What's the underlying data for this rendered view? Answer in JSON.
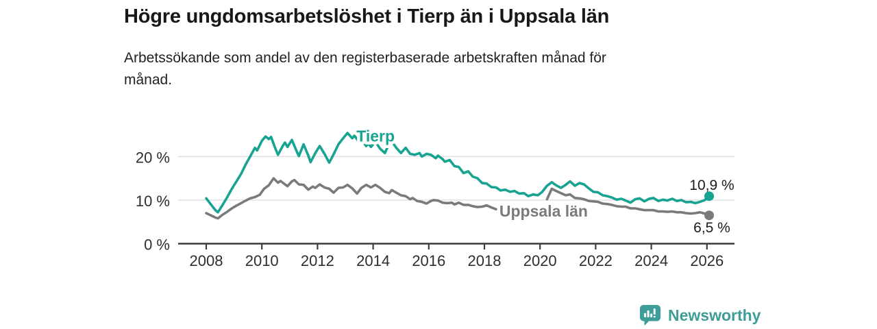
{
  "header": {
    "title": "Högre ungdomsarbetslöshet i Tierp än i Uppsala län",
    "subtitle": "Arbetssökande som andel av den registerbaserade arbetskraften månad för månad.",
    "subtitle_lines": [
      "Arbetssökande som andel av den registerbaserade arbetskraften månad för",
      "månad."
    ]
  },
  "footer": {
    "brand": "Newsworthy",
    "brand_color": "#3E9D98",
    "logo_icon": "bar-chart-speech-bubble-icon"
  },
  "chart_data": {
    "type": "line",
    "title": "Högre ungdomsarbetslöshet i Tierp än i Uppsala län",
    "subtitle": "Arbetssökande som andel av den registerbaserade arbetskraften månad för månad.",
    "xlabel": "",
    "ylabel": "",
    "unit": "%",
    "xlim": [
      2008,
      2026.2
    ],
    "ylim": [
      0,
      28
    ],
    "grid": "horizontal-only",
    "legend": "inline-labels",
    "x_ticks": [
      {
        "v": 2008,
        "label": "2008"
      },
      {
        "v": 2010,
        "label": "2010"
      },
      {
        "v": 2012,
        "label": "2012"
      },
      {
        "v": 2014,
        "label": "2014"
      },
      {
        "v": 2016,
        "label": "2016"
      },
      {
        "v": 2018,
        "label": "2018"
      },
      {
        "v": 2020,
        "label": "2020"
      },
      {
        "v": 2022,
        "label": "2022"
      },
      {
        "v": 2024,
        "label": "2024"
      },
      {
        "v": 2026,
        "label": "2026"
      }
    ],
    "y_ticks": [
      {
        "v": 0,
        "label": "0 %"
      },
      {
        "v": 10,
        "label": "10 %"
      },
      {
        "v": 20,
        "label": "20 %"
      }
    ],
    "colors": {
      "tierp": "#17A392",
      "uppsala": "#7A7A7A",
      "grid": "#DBDBDB",
      "axis": "#3C3C3C",
      "tick_text": "#2E2E2E",
      "value_text": "#1A1A1A"
    },
    "series": [
      {
        "name": "Tierp",
        "color_key": "tierp",
        "end_value": 10.9,
        "end_label": "10,9 %",
        "value_label_placement": "above",
        "label_pos": {
          "x": 2013.4,
          "y": 23.4
        },
        "points": [
          [
            2008.0,
            10.4
          ],
          [
            2008.17,
            9.0
          ],
          [
            2008.33,
            7.7
          ],
          [
            2008.42,
            7.2
          ],
          [
            2008.58,
            8.8
          ],
          [
            2008.75,
            10.6
          ],
          [
            2008.92,
            12.6
          ],
          [
            2009.08,
            14.2
          ],
          [
            2009.25,
            16.0
          ],
          [
            2009.42,
            18.2
          ],
          [
            2009.58,
            20.0
          ],
          [
            2009.75,
            22.0
          ],
          [
            2009.83,
            21.4
          ],
          [
            2010.0,
            23.6
          ],
          [
            2010.13,
            24.6
          ],
          [
            2010.25,
            24.0
          ],
          [
            2010.33,
            24.5
          ],
          [
            2010.5,
            21.6
          ],
          [
            2010.58,
            20.4
          ],
          [
            2010.75,
            22.4
          ],
          [
            2010.83,
            23.2
          ],
          [
            2010.92,
            22.2
          ],
          [
            2011.08,
            23.8
          ],
          [
            2011.25,
            21.2
          ],
          [
            2011.33,
            20.1
          ],
          [
            2011.5,
            22.8
          ],
          [
            2011.67,
            20.2
          ],
          [
            2011.75,
            18.7
          ],
          [
            2011.92,
            20.8
          ],
          [
            2012.08,
            22.4
          ],
          [
            2012.25,
            20.6
          ],
          [
            2012.42,
            18.6
          ],
          [
            2012.58,
            20.5
          ],
          [
            2012.75,
            22.8
          ],
          [
            2012.92,
            24.2
          ],
          [
            2013.08,
            25.4
          ],
          [
            2013.25,
            24.2
          ],
          [
            2013.33,
            24.8
          ],
          [
            2013.5,
            23.2
          ],
          [
            2013.58,
            23.8
          ],
          [
            2013.75,
            22.4
          ],
          [
            2013.83,
            23.0
          ],
          [
            2013.92,
            22.2
          ],
          [
            2014.08,
            23.4
          ],
          [
            2014.25,
            21.8
          ],
          [
            2014.42,
            20.8
          ],
          [
            2014.58,
            23.0
          ],
          [
            2014.67,
            23.5
          ],
          [
            2014.83,
            22.0
          ],
          [
            2015.0,
            20.8
          ],
          [
            2015.17,
            22.0
          ],
          [
            2015.33,
            20.6
          ],
          [
            2015.5,
            20.4
          ],
          [
            2015.67,
            20.8
          ],
          [
            2015.75,
            20.0
          ],
          [
            2015.92,
            20.6
          ],
          [
            2016.08,
            20.4
          ],
          [
            2016.25,
            19.6
          ],
          [
            2016.33,
            20.2
          ],
          [
            2016.5,
            19.4
          ],
          [
            2016.58,
            18.8
          ],
          [
            2016.75,
            19.2
          ],
          [
            2016.92,
            17.8
          ],
          [
            2017.08,
            17.6
          ],
          [
            2017.25,
            16.2
          ],
          [
            2017.42,
            16.6
          ],
          [
            2017.58,
            15.4
          ],
          [
            2017.75,
            15.0
          ],
          [
            2017.92,
            13.9
          ],
          [
            2018.08,
            13.8
          ],
          [
            2018.25,
            13.0
          ],
          [
            2018.42,
            12.9
          ],
          [
            2018.58,
            12.2
          ],
          [
            2018.75,
            12.4
          ],
          [
            2018.92,
            11.9
          ],
          [
            2019.08,
            12.1
          ],
          [
            2019.25,
            11.5
          ],
          [
            2019.42,
            11.6
          ],
          [
            2019.58,
            10.9
          ],
          [
            2019.75,
            11.3
          ],
          [
            2019.92,
            11.1
          ],
          [
            2020.08,
            11.9
          ],
          [
            2020.25,
            13.3
          ],
          [
            2020.42,
            14.1
          ],
          [
            2020.58,
            13.4
          ],
          [
            2020.75,
            12.8
          ],
          [
            2020.92,
            13.5
          ],
          [
            2021.08,
            14.3
          ],
          [
            2021.25,
            13.3
          ],
          [
            2021.42,
            13.9
          ],
          [
            2021.58,
            13.6
          ],
          [
            2021.75,
            12.7
          ],
          [
            2021.92,
            11.9
          ],
          [
            2022.08,
            11.8
          ],
          [
            2022.25,
            11.1
          ],
          [
            2022.42,
            10.9
          ],
          [
            2022.58,
            10.6
          ],
          [
            2022.75,
            10.1
          ],
          [
            2022.92,
            10.3
          ],
          [
            2023.08,
            9.9
          ],
          [
            2023.25,
            9.4
          ],
          [
            2023.42,
            10.2
          ],
          [
            2023.58,
            10.4
          ],
          [
            2023.75,
            9.7
          ],
          [
            2023.92,
            10.3
          ],
          [
            2024.08,
            10.5
          ],
          [
            2024.25,
            9.8
          ],
          [
            2024.42,
            10.1
          ],
          [
            2024.58,
            9.9
          ],
          [
            2024.75,
            10.3
          ],
          [
            2024.92,
            9.8
          ],
          [
            2025.08,
            10.0
          ],
          [
            2025.25,
            9.5
          ],
          [
            2025.42,
            9.6
          ],
          [
            2025.58,
            9.3
          ],
          [
            2025.75,
            9.6
          ],
          [
            2025.92,
            10.0
          ],
          [
            2026.08,
            10.9
          ]
        ]
      },
      {
        "name": "Uppsala län",
        "color_key": "uppsala",
        "end_value": 6.5,
        "end_label": "6,5 %",
        "value_label_placement": "below",
        "label_pos": {
          "x": 2018.54,
          "y": 6.2
        },
        "gap": [
          2018.45,
          2020.2
        ],
        "points": [
          [
            2008.0,
            7.0
          ],
          [
            2008.17,
            6.5
          ],
          [
            2008.33,
            6.0
          ],
          [
            2008.42,
            5.8
          ],
          [
            2008.58,
            6.6
          ],
          [
            2008.75,
            7.3
          ],
          [
            2008.92,
            8.1
          ],
          [
            2009.08,
            8.7
          ],
          [
            2009.25,
            9.3
          ],
          [
            2009.42,
            9.9
          ],
          [
            2009.58,
            10.4
          ],
          [
            2009.75,
            10.7
          ],
          [
            2009.92,
            11.2
          ],
          [
            2010.08,
            12.6
          ],
          [
            2010.25,
            13.4
          ],
          [
            2010.42,
            15.0
          ],
          [
            2010.58,
            14.0
          ],
          [
            2010.67,
            14.4
          ],
          [
            2010.83,
            13.6
          ],
          [
            2010.92,
            13.2
          ],
          [
            2011.08,
            14.3
          ],
          [
            2011.17,
            14.6
          ],
          [
            2011.33,
            13.6
          ],
          [
            2011.5,
            13.5
          ],
          [
            2011.67,
            12.4
          ],
          [
            2011.83,
            13.1
          ],
          [
            2011.92,
            12.8
          ],
          [
            2012.08,
            13.6
          ],
          [
            2012.25,
            12.9
          ],
          [
            2012.42,
            12.6
          ],
          [
            2012.58,
            11.7
          ],
          [
            2012.75,
            12.8
          ],
          [
            2012.92,
            12.9
          ],
          [
            2013.08,
            13.5
          ],
          [
            2013.25,
            12.7
          ],
          [
            2013.42,
            11.5
          ],
          [
            2013.58,
            12.8
          ],
          [
            2013.75,
            13.5
          ],
          [
            2013.92,
            12.9
          ],
          [
            2014.08,
            13.5
          ],
          [
            2014.25,
            12.8
          ],
          [
            2014.42,
            11.9
          ],
          [
            2014.58,
            11.6
          ],
          [
            2014.67,
            12.3
          ],
          [
            2014.83,
            11.7
          ],
          [
            2015.0,
            11.1
          ],
          [
            2015.17,
            10.9
          ],
          [
            2015.33,
            10.2
          ],
          [
            2015.42,
            10.5
          ],
          [
            2015.58,
            9.8
          ],
          [
            2015.75,
            9.6
          ],
          [
            2015.92,
            9.2
          ],
          [
            2016.08,
            9.8
          ],
          [
            2016.17,
            10.0
          ],
          [
            2016.33,
            9.9
          ],
          [
            2016.5,
            9.4
          ],
          [
            2016.67,
            9.3
          ],
          [
            2016.83,
            9.4
          ],
          [
            2016.92,
            9.0
          ],
          [
            2017.08,
            9.4
          ],
          [
            2017.25,
            8.9
          ],
          [
            2017.42,
            8.9
          ],
          [
            2017.58,
            8.6
          ],
          [
            2017.75,
            8.4
          ],
          [
            2017.92,
            8.5
          ],
          [
            2018.08,
            8.8
          ],
          [
            2018.25,
            8.3
          ],
          [
            2018.42,
            7.9
          ],
          [
            2018.58,
            7.8
          ],
          [
            2018.75,
            8.0
          ],
          [
            2018.92,
            7.9
          ],
          [
            2019.08,
            8.1
          ],
          [
            2019.25,
            8.0
          ],
          [
            2019.42,
            7.9
          ],
          [
            2019.58,
            7.8
          ],
          [
            2019.75,
            7.9
          ],
          [
            2019.92,
            8.2
          ],
          [
            2020.08,
            8.6
          ],
          [
            2020.25,
            10.2
          ],
          [
            2020.42,
            12.6
          ],
          [
            2020.58,
            12.1
          ],
          [
            2020.75,
            11.6
          ],
          [
            2020.92,
            11.1
          ],
          [
            2021.08,
            11.3
          ],
          [
            2021.25,
            10.5
          ],
          [
            2021.42,
            10.4
          ],
          [
            2021.58,
            10.2
          ],
          [
            2021.75,
            9.8
          ],
          [
            2021.92,
            9.7
          ],
          [
            2022.08,
            9.6
          ],
          [
            2022.25,
            9.2
          ],
          [
            2022.42,
            9.1
          ],
          [
            2022.58,
            8.9
          ],
          [
            2022.75,
            8.6
          ],
          [
            2022.92,
            8.5
          ],
          [
            2023.08,
            8.5
          ],
          [
            2023.25,
            8.1
          ],
          [
            2023.42,
            8.1
          ],
          [
            2023.58,
            7.9
          ],
          [
            2023.75,
            7.7
          ],
          [
            2023.92,
            7.7
          ],
          [
            2024.08,
            7.7
          ],
          [
            2024.25,
            7.4
          ],
          [
            2024.42,
            7.4
          ],
          [
            2024.58,
            7.3
          ],
          [
            2024.75,
            7.4
          ],
          [
            2024.92,
            7.2
          ],
          [
            2025.08,
            7.2
          ],
          [
            2025.25,
            7.0
          ],
          [
            2025.42,
            6.9
          ],
          [
            2025.58,
            7.0
          ],
          [
            2025.75,
            7.2
          ],
          [
            2025.92,
            6.9
          ],
          [
            2026.08,
            6.5
          ]
        ]
      }
    ]
  }
}
